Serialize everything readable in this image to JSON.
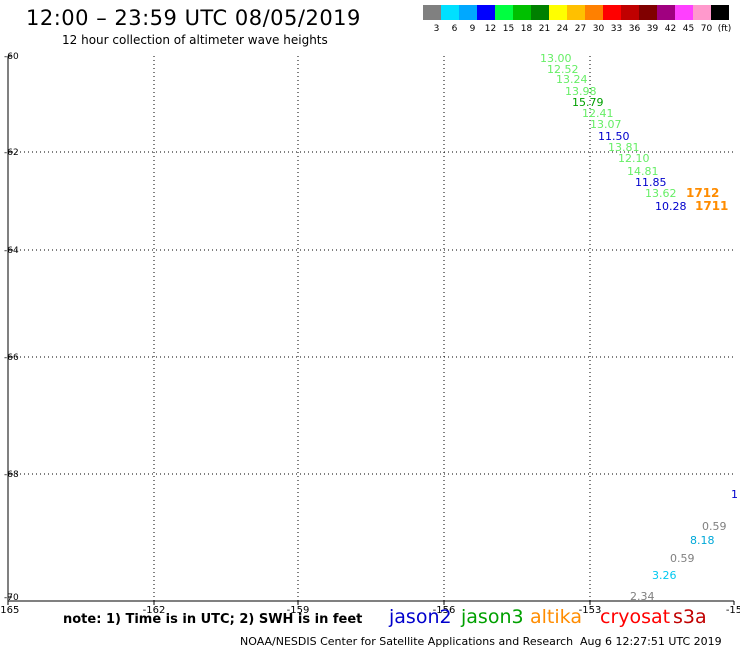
{
  "header": {
    "title": "12:00 – 23:59 UTC 08/05/2019",
    "subtitle": "12 hour collection of altimeter wave heights"
  },
  "colorbar": {
    "colors": [
      "#808080",
      "#00e0ff",
      "#00a8ff",
      "#0000ff",
      "#00ff40",
      "#00c000",
      "#008000",
      "#ffff00",
      "#ffc000",
      "#ff8000",
      "#ff0000",
      "#c00000",
      "#800000",
      "#a00080",
      "#ff40ff",
      "#ff99cc",
      "#000000"
    ],
    "labels": [
      "3",
      "6",
      "9",
      "12",
      "15",
      "18",
      "21",
      "24",
      "27",
      "30",
      "33",
      "36",
      "39",
      "42",
      "45",
      "70",
      "(ft)"
    ]
  },
  "chart_data": {
    "type": "scatter",
    "title": "12:00 – 23:59 UTC 08/05/2019",
    "subtitle": "12 hour collection of altimeter wave heights",
    "xlabel": "",
    "ylabel": "",
    "x_ticks": [
      "-165",
      "-162",
      "-159",
      "-156",
      "-153",
      "-15"
    ],
    "y_ticks": [
      "-60",
      "-62",
      "-64",
      "-66",
      "-68",
      "-70"
    ],
    "grid": true,
    "points": [
      {
        "label": "13.00",
        "color": "#66ee66"
      },
      {
        "label": "12.52",
        "color": "#66ee66"
      },
      {
        "label": "13.24",
        "color": "#66ee66"
      },
      {
        "label": "13.98",
        "color": "#66ee66"
      },
      {
        "label": "15.79",
        "color": "#00a000"
      },
      {
        "label": "12.41",
        "color": "#66ee66"
      },
      {
        "label": "13.07",
        "color": "#66ee66"
      },
      {
        "label": "11.50",
        "color": "#0000cc"
      },
      {
        "label": "13.81",
        "color": "#66ee66"
      },
      {
        "label": "12.10",
        "color": "#66ee66"
      },
      {
        "label": "14.81",
        "color": "#66ee66"
      },
      {
        "label": "11.85",
        "color": "#0000cc"
      },
      {
        "label": "13.62",
        "color": "#66ee66"
      },
      {
        "label": "10.28",
        "color": "#0000cc"
      },
      {
        "label": "1712",
        "color": "#ff8c00"
      },
      {
        "label": "1711",
        "color": "#ff8c00"
      },
      {
        "label": "1",
        "color": "#0000cc"
      },
      {
        "label": "0.59",
        "color": "#808080"
      },
      {
        "label": "8.18",
        "color": "#00a8d8"
      },
      {
        "label": "0.59",
        "color": "#808080"
      },
      {
        "label": "3.26",
        "color": "#00c8f0"
      },
      {
        "label": "2.34",
        "color": "#808080"
      }
    ]
  },
  "notes": {
    "note": "note: 1) Time is in UTC; 2) SWH is in feet",
    "satellites": [
      {
        "name": "jason2",
        "color": "#0000cc"
      },
      {
        "name": "jason3",
        "color": "#00a000"
      },
      {
        "name": "altika",
        "color": "#ff8c00"
      },
      {
        "name": "cryosat",
        "color": "#ff0000"
      },
      {
        "name": "s3a",
        "color": "#c00000"
      }
    ]
  },
  "footer": {
    "credit": "NOAA/NESDIS Center for Satellite Applications and Research",
    "timestamp": "Aug  6 12:27:51 UTC 2019"
  }
}
